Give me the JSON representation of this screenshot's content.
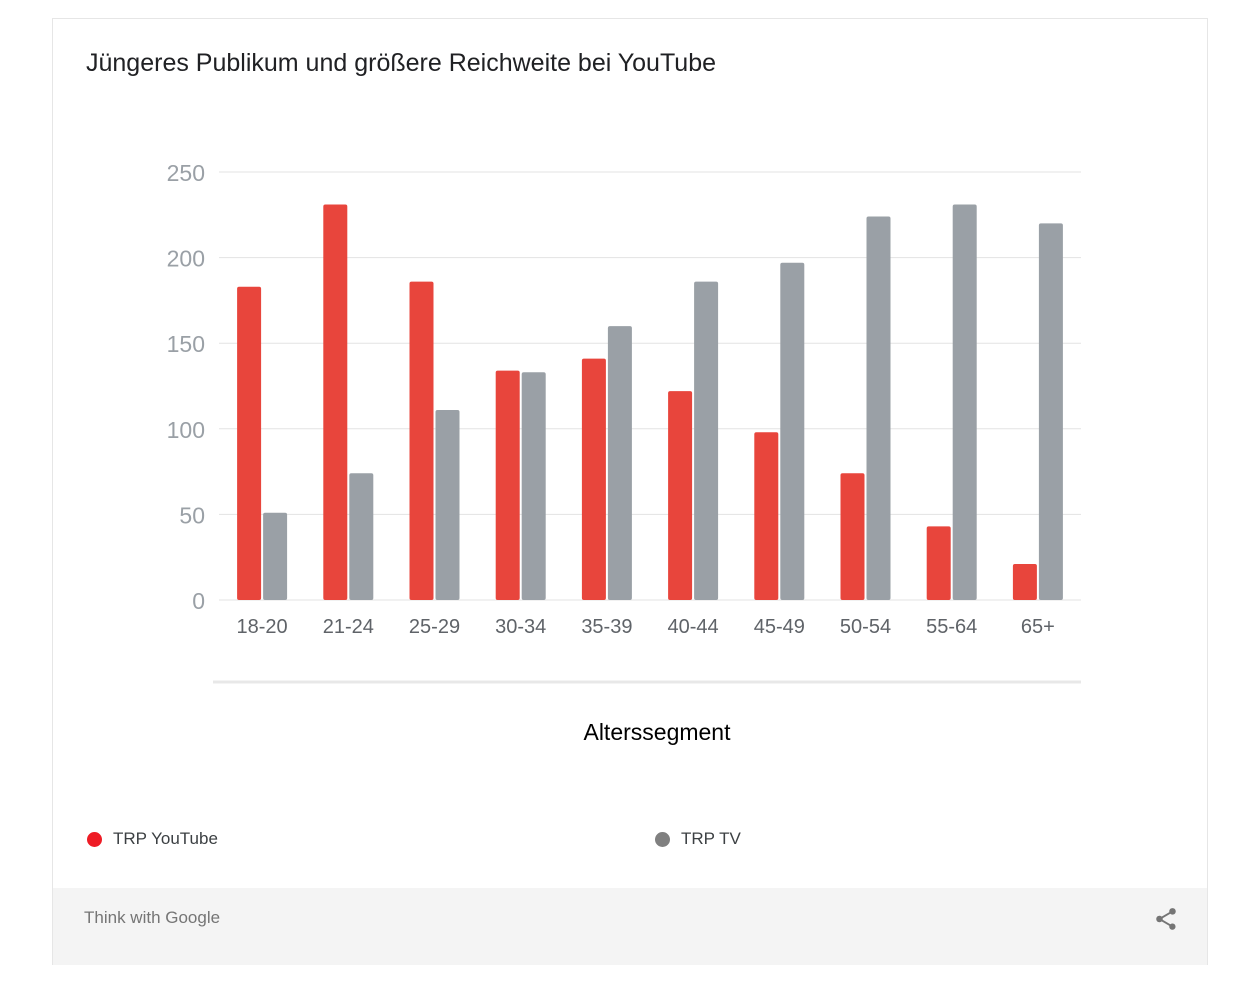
{
  "title": "Jüngeres Publikum und größere Reichweite bei YouTube",
  "brand": "Think with Google",
  "share_icon": "share-icon",
  "colors": {
    "youtube": "#e8453c",
    "tv": "#9aa0a6",
    "legend_youtube": "#ee1c25",
    "legend_tv": "#808080"
  },
  "chart_data": {
    "type": "bar",
    "title": "Jüngeres Publikum und größere Reichweite bei YouTube",
    "xlabel": "Alterssegment",
    "ylabel": "",
    "categories": [
      "18-20",
      "21-24",
      "25-29",
      "30-34",
      "35-39",
      "40-44",
      "45-49",
      "50-54",
      "55-64",
      "65+"
    ],
    "series": [
      {
        "name": "TRP YouTube",
        "values": [
          183,
          231,
          186,
          134,
          141,
          122,
          98,
          74,
          43,
          21
        ]
      },
      {
        "name": "TRP TV",
        "values": [
          51,
          74,
          111,
          133,
          160,
          186,
          197,
          224,
          231,
          220
        ]
      }
    ],
    "ylim": [
      0,
      250
    ],
    "yticks": [
      0,
      50,
      100,
      150,
      200,
      250
    ],
    "grid": true,
    "legend": "bottom"
  }
}
